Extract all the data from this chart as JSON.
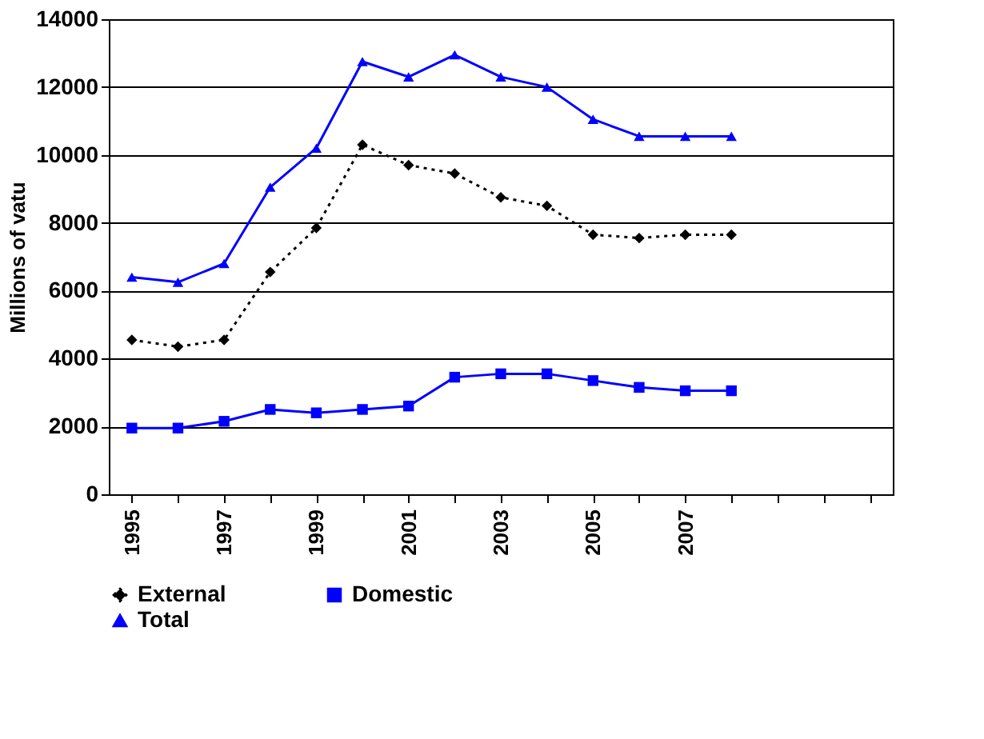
{
  "chart_data": {
    "type": "line",
    "ylabel": "Millions of vatu",
    "categories": [
      "1995",
      null,
      "1997",
      null,
      "1999",
      null,
      "2001",
      null,
      "2003",
      null,
      "2005",
      null,
      "2007",
      null,
      null,
      null,
      null
    ],
    "series": [
      {
        "name": "External",
        "color": "#000000",
        "marker": "diamond",
        "line_style": "dotted",
        "values": [
          4550,
          4350,
          4550,
          6550,
          7850,
          10300,
          9700,
          9450,
          8750,
          8500,
          7650,
          7550,
          7650,
          7650,
          null,
          null,
          null
        ]
      },
      {
        "name": "Domestic",
        "color": "#0000ff",
        "marker": "square",
        "line_style": "solid",
        "values": [
          1950,
          1950,
          2150,
          2500,
          2400,
          2500,
          2600,
          3450,
          3550,
          3550,
          3350,
          3150,
          3050,
          3050,
          null,
          null,
          null
        ]
      },
      {
        "name": "Total",
        "color": "#0000ff",
        "marker": "triangle",
        "line_style": "solid",
        "values": [
          6400,
          6250,
          6800,
          9050,
          10200,
          12750,
          12300,
          12950,
          12300,
          12000,
          11050,
          10550,
          10550,
          10550,
          null,
          null,
          null
        ]
      }
    ],
    "ylim": [
      0,
      14000
    ],
    "yticks": [
      0,
      2000,
      4000,
      6000,
      8000,
      10000,
      12000,
      14000
    ],
    "grid": "y",
    "legend": "bottom"
  }
}
